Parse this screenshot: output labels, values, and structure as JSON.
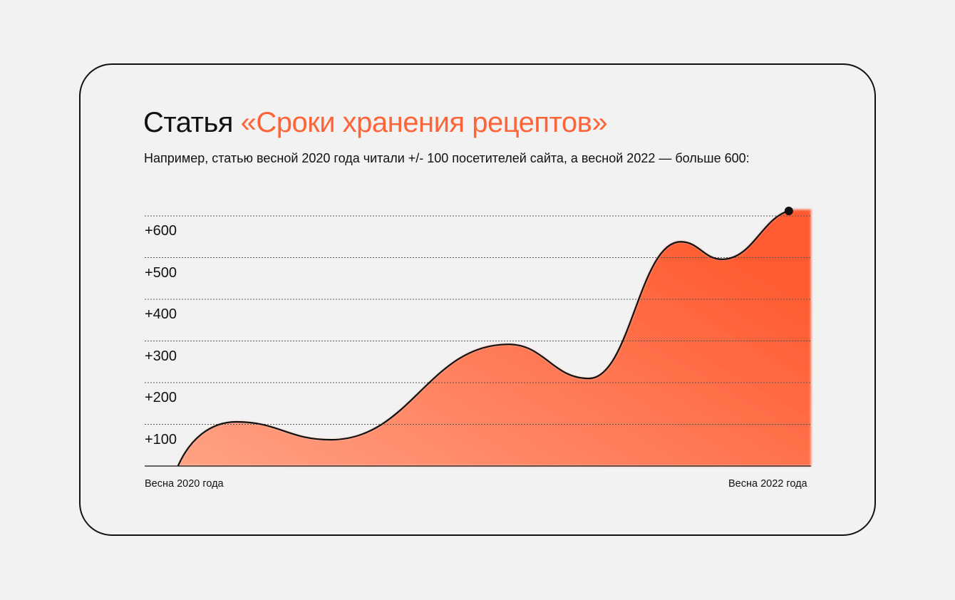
{
  "title": {
    "prefix": "Статья",
    "accent": "«Сроки хранения рецептов»"
  },
  "subtitle": "Например, статью весной 2020 года читали +/- 100 посетителей сайта, а весной 2022 — больше 600:",
  "colors": {
    "accent": "#ff6438",
    "fill_start": "#ffa285",
    "fill_end": "#ff5a30",
    "line": "#111111",
    "background": "#f2f2f2"
  },
  "chart_data": {
    "type": "area",
    "title": "Статья «Сроки хранения рецептов»",
    "xlabel": "",
    "ylabel": "",
    "x_unit": "months since spring 2020",
    "xlim": [
      0,
      24
    ],
    "ylim": [
      0,
      600
    ],
    "x_tick_labels": [
      "Весна 2020 года",
      "Весна 2022 года"
    ],
    "y_tick_labels": [
      "+600",
      "+500",
      "+400",
      "+300",
      "+200",
      "+100"
    ],
    "y_ticks": [
      600,
      500,
      400,
      300,
      200,
      100
    ],
    "grid": true,
    "points": [
      {
        "x": 1.2,
        "y": 0
      },
      {
        "x": 3.3,
        "y": 106
      },
      {
        "x": 6.7,
        "y": 63
      },
      {
        "x": 13.1,
        "y": 292
      },
      {
        "x": 16.0,
        "y": 210
      },
      {
        "x": 19.3,
        "y": 538
      },
      {
        "x": 20.8,
        "y": 496
      },
      {
        "x": 23.2,
        "y": 612
      }
    ],
    "highlight_point": {
      "x": 23.2,
      "y": 612
    }
  }
}
